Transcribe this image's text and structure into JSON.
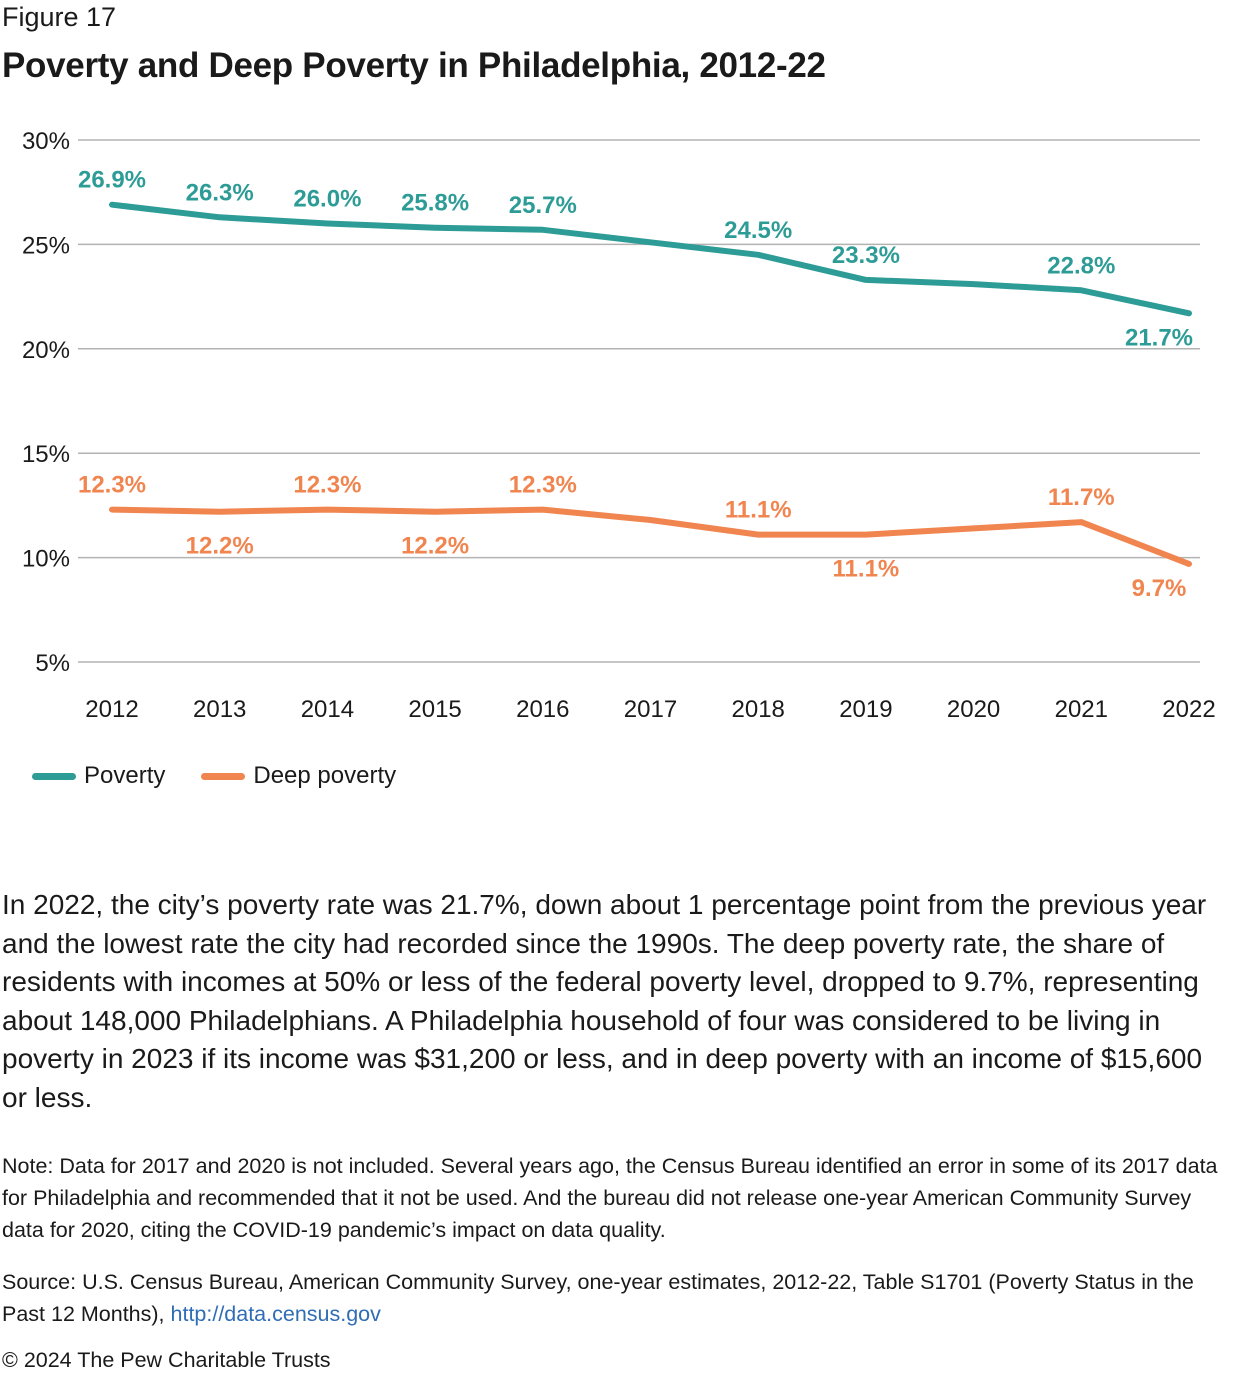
{
  "figure_label": "Figure 17",
  "title": "Poverty and Deep Poverty in Philadelphia, 2012-22",
  "colors": {
    "poverty": "#2e9c96",
    "deep_poverty": "#f08550",
    "grid": "#b3b3b3",
    "link": "#2f6db5"
  },
  "chart_data": {
    "type": "line",
    "x": [
      "2012",
      "2013",
      "2014",
      "2015",
      "2016",
      "2017",
      "2018",
      "2019",
      "2020",
      "2021",
      "2022"
    ],
    "ylim": [
      5,
      30
    ],
    "yticks": [
      "5%",
      "10%",
      "15%",
      "20%",
      "25%",
      "30%"
    ],
    "ytick_values": [
      5,
      10,
      15,
      20,
      25,
      30
    ],
    "grid": true,
    "legend_position": "bottom-left",
    "series": [
      {
        "name": "Poverty",
        "color": "#2e9c96",
        "values": [
          26.9,
          26.3,
          26.0,
          25.8,
          25.7,
          25.1,
          24.5,
          23.3,
          23.1,
          22.8,
          21.7
        ],
        "labels": [
          "26.9%",
          "26.3%",
          "26.0%",
          "25.8%",
          "25.7%",
          null,
          "24.5%",
          "23.3%",
          null,
          "22.8%",
          "21.7%"
        ]
      },
      {
        "name": "Deep poverty",
        "color": "#f08550",
        "values": [
          12.3,
          12.2,
          12.3,
          12.2,
          12.3,
          11.8,
          11.1,
          11.1,
          11.4,
          11.7,
          9.7
        ],
        "labels": [
          "12.3%",
          "12.2%",
          "12.3%",
          "12.2%",
          "12.3%",
          null,
          "11.1%",
          "11.1%",
          null,
          "11.7%",
          "9.7%"
        ]
      }
    ]
  },
  "legend": {
    "poverty": "Poverty",
    "deep_poverty": "Deep poverty"
  },
  "body_text": "In 2022, the city’s poverty rate was 21.7%, down about 1 percentage point from the previous year and the lowest rate the city had recorded since the 1990s. The deep poverty rate, the share of residents with incomes at 50% or less of the federal poverty level, dropped to 9.7%, representing about 148,000 Philadelphians. A Philadelphia household of four was considered to be living in poverty in 2023 if its income was $31,200 or less, and in deep poverty with an income of $15,600 or less.",
  "note": "Note: Data for 2017 and 2020 is not included. Several years ago, the Census Bureau identified an error in some of its 2017 data for Philadelphia and recommended that it not be used. And the bureau did not release one-year American Community Survey data for 2020, citing the COVID-19 pandemic’s impact on data quality.",
  "source_text": "Source: U.S. Census Bureau, American Community Survey, one-year estimates, 2012-22, Table S1701 (Poverty Status in the Past 12 Months),",
  "source_link": "http://data.census.gov",
  "copyright": "© 2024 The Pew Charitable Trusts"
}
